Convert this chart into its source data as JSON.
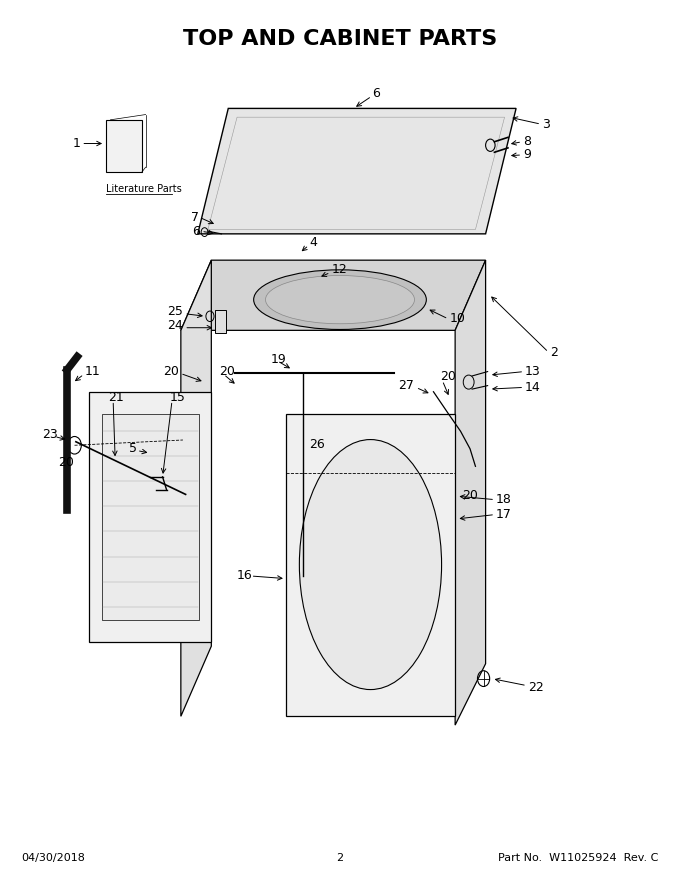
{
  "title": "TOP AND CABINET PARTS",
  "title_fontsize": 16,
  "title_fontweight": "bold",
  "footer_left": "04/30/2018",
  "footer_center": "2",
  "footer_right": "Part No.  W11025924  Rev. C",
  "footer_fontsize": 9,
  "background_color": "#ffffff",
  "line_color": "#000000",
  "text_color": "#000000",
  "label_fontsize": 9
}
